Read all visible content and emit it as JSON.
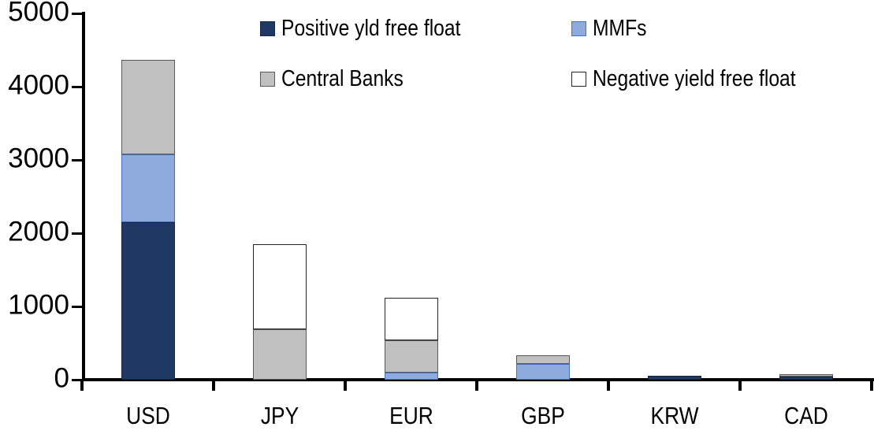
{
  "chart_data": {
    "type": "bar",
    "stacked": true,
    "title": "",
    "categories": [
      "USD",
      "JPY",
      "EUR",
      "GBP",
      "KRW",
      "CAD"
    ],
    "series": [
      {
        "name": "Positive yld free float",
        "color": "#1F3864",
        "border": "#152743",
        "values": [
          2150,
          0,
          0,
          0,
          50,
          40
        ]
      },
      {
        "name": "MMFs",
        "color": "#8FAADC",
        "border": "#4472C4",
        "values": [
          930,
          0,
          100,
          210,
          0,
          0
        ]
      },
      {
        "name": "Central Banks",
        "color": "#C0C0C0",
        "border": "#595959",
        "values": [
          1290,
          690,
          440,
          120,
          0,
          30
        ]
      },
      {
        "name": "Negative yield free float",
        "color": "#FFFFFF",
        "border": "#262626",
        "values": [
          0,
          1160,
          580,
          0,
          0,
          0
        ]
      }
    ],
    "totals": [
      4370,
      1850,
      1120,
      330,
      50,
      70
    ],
    "ylim": [
      0,
      5000
    ],
    "yticks": [
      0,
      1000,
      2000,
      3000,
      4000,
      5000
    ],
    "xlabel": "",
    "ylabel": "",
    "legend_position": "top",
    "grid": false,
    "axis_color": "#000000",
    "text_color": "#000000",
    "background": "#FFFFFF"
  }
}
